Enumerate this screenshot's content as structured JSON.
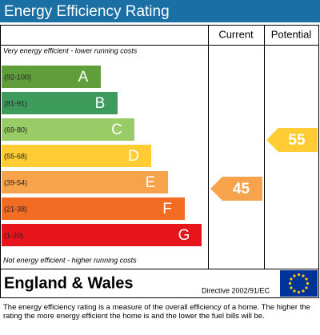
{
  "header": {
    "title": "Energy Efficiency Rating",
    "color": "#1a6fa5"
  },
  "table": {
    "columns": [
      "Current",
      "Potential"
    ],
    "top_note": "Very energy efficient - lower running costs",
    "bottom_note": "Not energy efficient - higher running costs",
    "bands": [
      {
        "range": "(92-100)",
        "letter": "A",
        "color": "#5f9e3a"
      },
      {
        "range": "(81-91)",
        "letter": "B",
        "color": "#3d9c5c"
      },
      {
        "range": "(69-80)",
        "letter": "C",
        "color": "#99cc66"
      },
      {
        "range": "(55-68)",
        "letter": "D",
        "color": "#ffcc33"
      },
      {
        "range": "(39-54)",
        "letter": "E",
        "color": "#f7a34b"
      },
      {
        "range": "(21-38)",
        "letter": "F",
        "color": "#f26d23"
      },
      {
        "range": "(1-20)",
        "letter": "G",
        "color": "#e8141c"
      }
    ],
    "current": {
      "value": 45,
      "color": "#f7a34b"
    },
    "potential": {
      "value": 55,
      "color": "#ffcc33"
    }
  },
  "footer": {
    "region": "England & Wales",
    "directive": "Directive 2002/91/EC",
    "note": "The energy efficiency rating is a measure of the overall efficiency of a home. The higher the rating the more energy efficient the home is and the lower the fuel bills will be."
  }
}
